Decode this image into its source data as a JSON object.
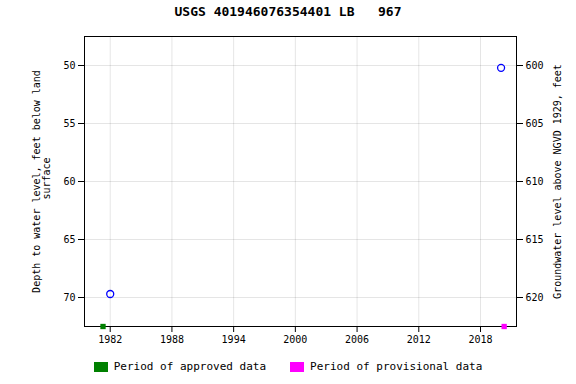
{
  "chart_data": {
    "type": "scatter",
    "title": "USGS 401946076354401 LB   967",
    "ylabel": "Depth to water level, feet below land\n surface",
    "y2label": "Groundwater level above NGVD 1929, feet",
    "xlim": [
      1979.5,
      2021.5
    ],
    "xticks": [
      1982,
      1988,
      1994,
      2000,
      2006,
      2012,
      2018
    ],
    "ylim": [
      72.5,
      47.5
    ],
    "yticks": [
      50,
      55,
      60,
      65,
      70
    ],
    "y2lim": [
      622.5,
      597.5
    ],
    "y2ticks": [
      620,
      615,
      610,
      605,
      600
    ],
    "grid": true,
    "legend": "bottom",
    "series": [
      {
        "color": "#0000ff",
        "marker": "circle",
        "x": [
          1982.0,
          2020.0
        ],
        "values": [
          69.7,
          50.2
        ]
      },
      {
        "name": "Period of approved data",
        "color": "#008000",
        "marker": "square",
        "x": [
          1981.3
        ],
        "values": [
          72.5
        ]
      },
      {
        "name": "Period of provisional data",
        "color": "#ff00ff",
        "marker": "square",
        "x": [
          2020.3
        ],
        "values": [
          72.5
        ]
      }
    ]
  }
}
